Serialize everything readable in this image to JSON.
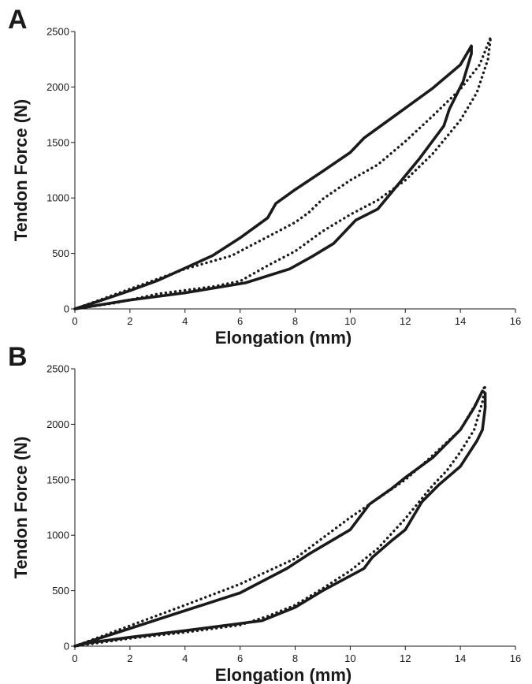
{
  "chart_data": [
    {
      "type": "line",
      "panel_label": "A",
      "xlabel": "Elongation (mm)",
      "ylabel": "Tendon Force (N)",
      "xlim": [
        0,
        16
      ],
      "ylim": [
        0,
        2500
      ],
      "x_ticks": [
        0,
        2,
        4,
        6,
        8,
        10,
        12,
        14,
        16
      ],
      "y_ticks": [
        0,
        500,
        1000,
        1500,
        2000,
        2500
      ],
      "grid": false,
      "legend": "none",
      "series": [
        {
          "style": "solid",
          "x": [
            0,
            1,
            2,
            3,
            5,
            6,
            7,
            7.3,
            8,
            9,
            10,
            10.5,
            11,
            12,
            13,
            14,
            14.4,
            14.4,
            14.1,
            13.6,
            13.4,
            12.5,
            11.5,
            11,
            10.2,
            9.4,
            8.6,
            7.8,
            6.2,
            4,
            2,
            1,
            0
          ],
          "y": [
            0,
            80,
            165,
            255,
            480,
            640,
            820,
            950,
            1075,
            1240,
            1410,
            1540,
            1630,
            1810,
            1990,
            2200,
            2370,
            2300,
            2050,
            1800,
            1650,
            1350,
            1050,
            900,
            800,
            590,
            470,
            360,
            235,
            145,
            80,
            40,
            0
          ]
        },
        {
          "style": "dotted",
          "x": [
            0,
            2,
            4,
            5.7,
            6,
            7,
            8,
            8.5,
            9,
            10,
            11,
            12,
            13,
            14,
            14.7,
            15.1,
            15,
            14.6,
            14,
            13,
            12,
            11,
            10,
            9,
            8,
            7,
            6,
            5,
            3,
            1.5,
            0
          ],
          "y": [
            0,
            180,
            360,
            480,
            520,
            650,
            780,
            870,
            990,
            1160,
            1300,
            1510,
            1740,
            1980,
            2200,
            2450,
            2250,
            1950,
            1700,
            1400,
            1160,
            980,
            850,
            700,
            520,
            390,
            250,
            200,
            135,
            55,
            0
          ]
        }
      ]
    },
    {
      "type": "line",
      "panel_label": "B",
      "xlabel": "Elongation (mm)",
      "ylabel": "Tendon Force (N)",
      "xlim": [
        0,
        16
      ],
      "ylim": [
        0,
        2500
      ],
      "x_ticks": [
        0,
        2,
        4,
        6,
        8,
        10,
        12,
        14,
        16
      ],
      "y_ticks": [
        0,
        500,
        1000,
        1500,
        2000,
        2500
      ],
      "grid": false,
      "legend": "none",
      "series": [
        {
          "style": "solid",
          "x": [
            0,
            2,
            4,
            6,
            7.7,
            8.5,
            10,
            10.7,
            11.5,
            12,
            13,
            14,
            14.5,
            14.8,
            14.9,
            14.9,
            14.8,
            14.6,
            14,
            13.2,
            12.6,
            12,
            11.5,
            10.8,
            10.5,
            9,
            8,
            6.8,
            4,
            2,
            0.5,
            0
          ],
          "y": [
            0,
            160,
            320,
            480,
            700,
            830,
            1050,
            1280,
            1420,
            1520,
            1700,
            1950,
            2150,
            2300,
            2280,
            2150,
            1950,
            1850,
            1620,
            1450,
            1300,
            1050,
            950,
            800,
            700,
            500,
            350,
            230,
            140,
            80,
            30,
            0
          ]
        },
        {
          "style": "dotted",
          "x": [
            0,
            2,
            4,
            6,
            8,
            10,
            12,
            13,
            14,
            14.6,
            14.9,
            14.8,
            14.5,
            14,
            13.5,
            13,
            12,
            11,
            10,
            9,
            8,
            7,
            6,
            4,
            2,
            0
          ],
          "y": [
            0,
            185,
            370,
            560,
            790,
            1160,
            1500,
            1720,
            1950,
            2200,
            2350,
            2200,
            1950,
            1750,
            1580,
            1450,
            1150,
            880,
            680,
            520,
            370,
            270,
            190,
            125,
            70,
            0
          ]
        }
      ]
    }
  ]
}
